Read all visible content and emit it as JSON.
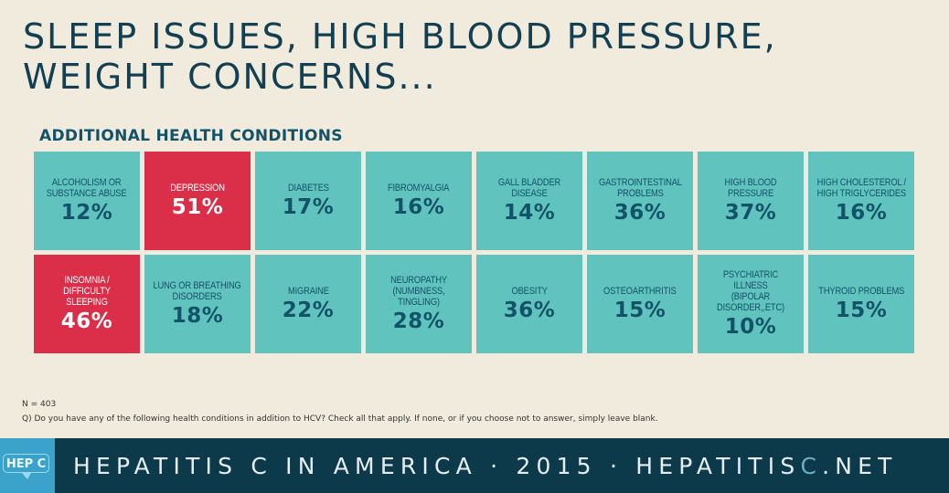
{
  "title": {
    "line1": "SLEEP ISSUES, HIGH BLOOD PRESSURE,",
    "line2": "WEIGHT CONCERNS..."
  },
  "subtitle": "ADDITIONAL HEALTH CONDITIONS",
  "colors": {
    "tile": "#61c3bd",
    "highlight": "#db2e48",
    "text_dark": "#12536a",
    "footer_bg": "#0d3a4b",
    "logo_bg": "#3ba3c9"
  },
  "chart_data": {
    "type": "table",
    "title": "Additional Health Conditions",
    "unit": "%",
    "categories": [
      "Alcoholism or Substance Abuse",
      "Depression",
      "Diabetes",
      "Fibromyalgia",
      "Gall Bladder Disease",
      "Gastrointestinal Problems",
      "High Blood Pressure",
      "High Cholesterol / High Triglycerides",
      "Insomnia / Difficulty Sleeping",
      "Lung or Breathing Disorders",
      "Migraine",
      "Neuropathy (Numbness, Tingling)",
      "Obesity",
      "Osteoarthritis",
      "Psychiatric Illness (Bipolar Disorder,,Etc)",
      "Thyroid Problems"
    ],
    "values": [
      12,
      51,
      17,
      16,
      14,
      36,
      37,
      16,
      46,
      18,
      22,
      28,
      36,
      15,
      10,
      15
    ],
    "highlighted": [
      "Depression",
      "Insomnia / Difficulty Sleeping"
    ]
  },
  "tiles": [
    {
      "label": "ALCOHOLISM OR\nSUBSTANCE ABUSE",
      "value": "12%",
      "highlight": false
    },
    {
      "label": "DEPRESSION",
      "value": "51%",
      "highlight": true
    },
    {
      "label": "DIABETES",
      "value": "17%",
      "highlight": false
    },
    {
      "label": "FIBROMYALGIA",
      "value": "16%",
      "highlight": false
    },
    {
      "label": "GALL BLADDER DISEASE",
      "value": "14%",
      "highlight": false
    },
    {
      "label": "GASTROINTESTINAL\nPROBLEMS",
      "value": "36%",
      "highlight": false
    },
    {
      "label": "HIGH BLOOD PRESSURE",
      "value": "37%",
      "highlight": false
    },
    {
      "label": "HIGH CHOLESTEROL /\nHIGH TRIGLYCERIDES",
      "value": "16%",
      "highlight": false
    },
    {
      "label": "INSOMNIA /\nDIFFICULTY SLEEPING",
      "value": "46%",
      "highlight": true
    },
    {
      "label": "LUNG OR BREATHING\nDISORDERS",
      "value": "18%",
      "highlight": false
    },
    {
      "label": "MIGRAINE",
      "value": "22%",
      "highlight": false
    },
    {
      "label": "NEUROPATHY\n(NUMBNESS, TINGLING)",
      "value": "28%",
      "highlight": false
    },
    {
      "label": "OBESITY",
      "value": "36%",
      "highlight": false
    },
    {
      "label": "OSTEOARTHRITIS",
      "value": "15%",
      "highlight": false
    },
    {
      "label": "PSYCHIATRIC ILLNESS\n(BIPOLAR DISORDER,,ETC)",
      "value": "10%",
      "highlight": false
    },
    {
      "label": "THYROID PROBLEMS",
      "value": "15%",
      "highlight": false
    }
  ],
  "notes": {
    "n": "N = 403",
    "question": "Q) Do you have any of the following health conditions in addition to HCV? Check all that apply. If none, or if you choose not to answer, simply leave blank."
  },
  "footer": {
    "logo": "HEP C",
    "text_main": "HEPATITIS C IN AMERICA · 2015 · HEPATITIS",
    "text_accent": "C",
    "text_end": ".NET"
  }
}
